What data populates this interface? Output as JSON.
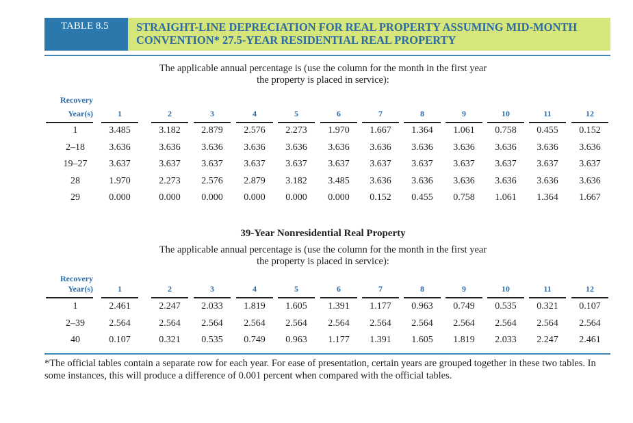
{
  "header": {
    "table_label": "TABLE 8.5",
    "title": "STRAIGHT-LINE DEPRECIATION FOR REAL PROPERTY ASSUMING MID-MONTH CONVENTION* 27.5-YEAR RESIDENTIAL REAL PROPERTY"
  },
  "residential": {
    "intro": "The applicable annual percentage is (use the column for the month in the first year the property is placed in service):",
    "row_header_line1": "Recovery",
    "row_header_line2": "Year(s)",
    "months": [
      "1",
      "2",
      "3",
      "4",
      "5",
      "6",
      "7",
      "8",
      "9",
      "10",
      "11",
      "12"
    ],
    "rows": [
      {
        "label": "1",
        "values": [
          "3.485",
          "3.182",
          "2.879",
          "2.576",
          "2.273",
          "1.970",
          "1.667",
          "1.364",
          "1.061",
          "0.758",
          "0.455",
          "0.152"
        ]
      },
      {
        "label": "2–18",
        "values": [
          "3.636",
          "3.636",
          "3.636",
          "3.636",
          "3.636",
          "3.636",
          "3.636",
          "3.636",
          "3.636",
          "3.636",
          "3.636",
          "3.636"
        ]
      },
      {
        "label": "19–27",
        "values": [
          "3.637",
          "3.637",
          "3.637",
          "3.637",
          "3.637",
          "3.637",
          "3.637",
          "3.637",
          "3.637",
          "3.637",
          "3.637",
          "3.637"
        ]
      },
      {
        "label": "28",
        "values": [
          "1.970",
          "2.273",
          "2.576",
          "2.879",
          "3.182",
          "3.485",
          "3.636",
          "3.636",
          "3.636",
          "3.636",
          "3.636",
          "3.636"
        ]
      },
      {
        "label": "29",
        "values": [
          "0.000",
          "0.000",
          "0.000",
          "0.000",
          "0.000",
          "0.000",
          "0.152",
          "0.455",
          "0.758",
          "1.061",
          "1.364",
          "1.667"
        ]
      }
    ]
  },
  "nonresidential": {
    "title": "39-Year Nonresidential Real Property",
    "intro": "The applicable annual percentage is (use the column for the month in the first year the property is placed in service):",
    "row_header_line1": "Recovery",
    "row_header_line2": "Year(s)",
    "months": [
      "1",
      "2",
      "3",
      "4",
      "5",
      "6",
      "7",
      "8",
      "9",
      "10",
      "11",
      "12"
    ],
    "rows": [
      {
        "label": "1",
        "values": [
          "2.461",
          "2.247",
          "2.033",
          "1.819",
          "1.605",
          "1.391",
          "1.177",
          "0.963",
          "0.749",
          "0.535",
          "0.321",
          "0.107"
        ]
      },
      {
        "label": "2–39",
        "values": [
          "2.564",
          "2.564",
          "2.564",
          "2.564",
          "2.564",
          "2.564",
          "2.564",
          "2.564",
          "2.564",
          "2.564",
          "2.564",
          "2.564"
        ]
      },
      {
        "label": "40",
        "values": [
          "0.107",
          "0.321",
          "0.535",
          "0.749",
          "0.963",
          "1.177",
          "1.391",
          "1.605",
          "1.819",
          "2.033",
          "2.247",
          "2.461"
        ]
      }
    ]
  },
  "footnote": "*The official tables contain a separate row for each year. For ease of presentation, certain years are grouped together in these two tables. In some instances, this will produce a difference of 0.001 percent when compared with the official tables.",
  "colors": {
    "tag_background": "#2b78ac",
    "title_band": "#d6e67a",
    "title_text": "#2b6aa4",
    "rule": "#3d86b8"
  }
}
